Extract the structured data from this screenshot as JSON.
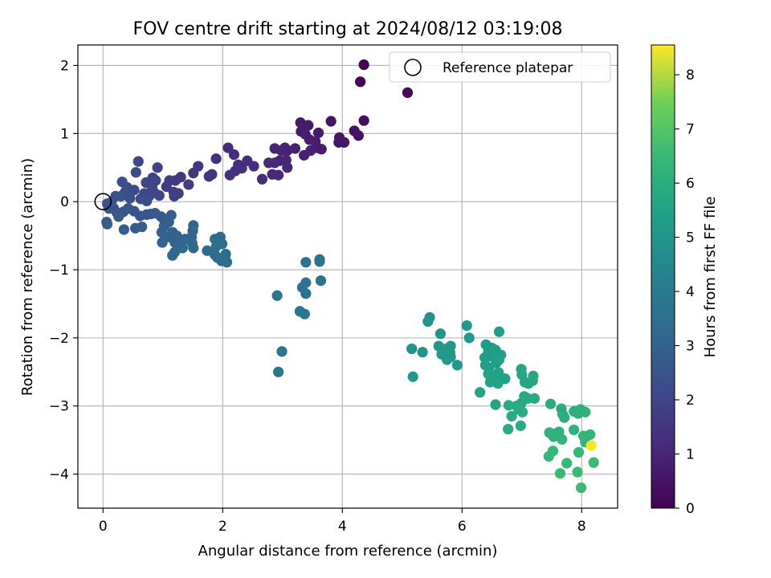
{
  "chart_data": {
    "type": "scatter",
    "title": "FOV centre drift starting at 2024/08/12 03:19:08",
    "xlabel": "Angular distance from reference (arcmin)",
    "ylabel": "Rotation from reference (arcmin)",
    "xlim": [
      -0.42,
      8.6
    ],
    "ylim": [
      -4.5,
      2.3
    ],
    "xticks": [
      0,
      2,
      4,
      6,
      8
    ],
    "yticks": [
      -4,
      -3,
      -2,
      -1,
      0,
      1,
      2
    ],
    "grid": true,
    "legend": {
      "position": "top-right",
      "entries": [
        "Reference platepar"
      ]
    },
    "reference_point": {
      "x": 0,
      "y": 0,
      "marker": "open-circle"
    },
    "colorbar": {
      "label": "Hours from first FF file",
      "colormap": "viridis",
      "range": [
        0,
        8.55
      ],
      "ticks": [
        0,
        1,
        2,
        3,
        4,
        5,
        6,
        7,
        8
      ]
    },
    "points": [
      [
        4.36,
        2.01,
        0.1
      ],
      [
        4.3,
        1.76,
        0.15
      ],
      [
        5.09,
        1.6,
        0.2
      ],
      [
        4.36,
        1.19,
        0.4
      ],
      [
        3.81,
        1.18,
        0.5
      ],
      [
        4.27,
        0.97,
        0.5
      ],
      [
        4.2,
        1.04,
        0.5
      ],
      [
        3.95,
        0.94,
        0.6
      ],
      [
        4.03,
        0.87,
        0.6
      ],
      [
        3.94,
        0.87,
        0.6
      ],
      [
        3.3,
        1.16,
        0.7
      ],
      [
        3.43,
        1.12,
        0.7
      ],
      [
        3.31,
        1.03,
        0.7
      ],
      [
        3.6,
        1.01,
        0.7
      ],
      [
        3.38,
        0.99,
        0.8
      ],
      [
        3.45,
        0.91,
        0.8
      ],
      [
        3.55,
        0.88,
        0.8
      ],
      [
        3.65,
        0.77,
        0.8
      ],
      [
        3.58,
        0.79,
        0.8
      ],
      [
        3.47,
        0.75,
        0.9
      ],
      [
        3.36,
        0.68,
        0.9
      ],
      [
        3.21,
        0.78,
        0.9
      ],
      [
        3.04,
        0.79,
        0.9
      ],
      [
        3.08,
        0.75,
        0.9
      ],
      [
        2.98,
        0.75,
        1.0
      ],
      [
        2.87,
        0.78,
        1.0
      ],
      [
        3.06,
        0.61,
        1.0
      ],
      [
        2.95,
        0.6,
        1.0
      ],
      [
        3.08,
        0.5,
        1.1
      ],
      [
        2.87,
        0.57,
        1.1
      ],
      [
        2.93,
        0.39,
        1.1
      ],
      [
        2.77,
        0.57,
        1.1
      ],
      [
        2.83,
        0.4,
        1.1
      ],
      [
        2.66,
        0.33,
        1.2
      ],
      [
        2.09,
        0.79,
        1.2
      ],
      [
        2.19,
        0.69,
        1.2
      ],
      [
        2.41,
        0.6,
        1.3
      ],
      [
        2.26,
        0.54,
        1.3
      ],
      [
        2.52,
        0.52,
        1.3
      ],
      [
        2.32,
        0.49,
        1.3
      ],
      [
        2.21,
        0.45,
        1.4
      ],
      [
        1.89,
        0.63,
        1.4
      ],
      [
        2.12,
        0.39,
        1.4
      ],
      [
        1.82,
        0.4,
        1.5
      ],
      [
        1.77,
        0.37,
        1.5
      ],
      [
        1.59,
        0.52,
        1.5
      ],
      [
        1.51,
        0.42,
        1.6
      ],
      [
        1.21,
        0.31,
        1.6
      ],
      [
        1.3,
        0.36,
        1.6
      ],
      [
        1.43,
        0.25,
        1.7
      ],
      [
        1.11,
        0.31,
        1.7
      ],
      [
        1.06,
        0.22,
        1.7
      ],
      [
        1.18,
        0.14,
        1.8
      ],
      [
        1.19,
        0.08,
        1.8
      ],
      [
        1.26,
        0.12,
        1.8
      ],
      [
        0.91,
        0.5,
        1.9
      ],
      [
        0.83,
        0.35,
        1.9
      ],
      [
        0.82,
        0.22,
        1.9
      ],
      [
        0.88,
        0.31,
        2.0
      ],
      [
        0.81,
        0.27,
        2.0
      ],
      [
        0.72,
        0.28,
        2.0
      ],
      [
        0.86,
        0.13,
        2.0
      ],
      [
        0.94,
        0.09,
        2.1
      ],
      [
        0.77,
        0.08,
        2.1
      ],
      [
        0.69,
        0.12,
        2.1
      ],
      [
        0.59,
        0.59,
        2.1
      ],
      [
        0.55,
        0.43,
        2.2
      ],
      [
        0.52,
        0.17,
        2.2
      ],
      [
        0.32,
        0.29,
        2.2
      ],
      [
        0.4,
        0.21,
        2.2
      ],
      [
        0.37,
        0.14,
        2.3
      ],
      [
        0.45,
        0.05,
        2.3
      ],
      [
        0.63,
        0.04,
        2.3
      ],
      [
        0.73,
        0.01,
        2.3
      ],
      [
        0.21,
        0.08,
        2.4
      ],
      [
        0.3,
        0.08,
        2.4
      ],
      [
        0.14,
        -0.01,
        2.4
      ],
      [
        0.07,
        -0.03,
        2.4
      ],
      [
        0.1,
        -0.1,
        2.5
      ],
      [
        0.18,
        -0.1,
        2.5
      ],
      [
        0.23,
        -0.16,
        2.5
      ],
      [
        0.34,
        -0.15,
        2.5
      ],
      [
        0.42,
        -0.1,
        2.6
      ],
      [
        0.52,
        -0.14,
        2.6
      ],
      [
        0.62,
        -0.21,
        2.6
      ],
      [
        0.73,
        -0.19,
        2.6
      ],
      [
        0.8,
        -0.18,
        2.7
      ],
      [
        0.87,
        -0.17,
        2.7
      ],
      [
        0.26,
        -0.22,
        2.7
      ],
      [
        0.06,
        -0.3,
        2.7
      ],
      [
        0.07,
        -0.33,
        2.7
      ],
      [
        0.35,
        -0.41,
        2.8
      ],
      [
        0.54,
        -0.39,
        2.8
      ],
      [
        0.65,
        -0.37,
        2.8
      ],
      [
        0.97,
        -0.22,
        2.8
      ],
      [
        1.02,
        -0.26,
        2.8
      ],
      [
        1.14,
        -0.2,
        2.9
      ],
      [
        1.1,
        -0.3,
        2.9
      ],
      [
        1.02,
        -0.36,
        2.9
      ],
      [
        0.98,
        -0.45,
        2.9
      ],
      [
        1.08,
        -0.52,
        3.0
      ],
      [
        0.99,
        -0.6,
        3.0
      ],
      [
        1.16,
        -0.45,
        3.0
      ],
      [
        1.23,
        -0.5,
        3.0
      ],
      [
        1.2,
        -0.6,
        3.0
      ],
      [
        1.28,
        -0.62,
        3.1
      ],
      [
        1.37,
        -0.55,
        3.1
      ],
      [
        1.48,
        -0.52,
        3.1
      ],
      [
        1.5,
        -0.43,
        3.1
      ],
      [
        1.51,
        -0.35,
        3.1
      ],
      [
        1.49,
        -0.61,
        3.2
      ],
      [
        1.51,
        -0.68,
        3.2
      ],
      [
        1.33,
        -0.68,
        3.2
      ],
      [
        1.2,
        -0.74,
        3.2
      ],
      [
        1.16,
        -0.79,
        3.2
      ],
      [
        1.74,
        -0.72,
        3.3
      ],
      [
        1.87,
        -0.55,
        3.3
      ],
      [
        1.96,
        -0.52,
        3.3
      ],
      [
        1.87,
        -0.78,
        3.3
      ],
      [
        1.91,
        -0.82,
        3.4
      ],
      [
        1.98,
        -0.87,
        3.4
      ],
      [
        2.04,
        -0.8,
        3.4
      ],
      [
        2.07,
        -0.89,
        3.4
      ],
      [
        2.05,
        -0.77,
        3.4
      ],
      [
        1.99,
        -0.62,
        3.5
      ],
      [
        1.89,
        -0.66,
        3.5
      ],
      [
        3.39,
        -0.89,
        3.6
      ],
      [
        3.62,
        -0.85,
        3.6
      ],
      [
        3.62,
        -0.88,
        3.6
      ],
      [
        3.64,
        -1.16,
        3.6
      ],
      [
        3.39,
        -1.19,
        3.7
      ],
      [
        3.33,
        -1.26,
        3.7
      ],
      [
        3.39,
        -1.35,
        3.7
      ],
      [
        2.91,
        -1.38,
        3.7
      ],
      [
        3.29,
        -1.61,
        3.8
      ],
      [
        3.37,
        -1.65,
        3.8
      ],
      [
        2.99,
        -2.2,
        3.8
      ],
      [
        2.93,
        -2.5,
        3.8
      ],
      [
        5.46,
        -1.7,
        4.9
      ],
      [
        5.43,
        -1.76,
        4.9
      ],
      [
        5.64,
        -1.94,
        5.0
      ],
      [
        5.61,
        -2.12,
        5.0
      ],
      [
        5.16,
        -2.16,
        5.0
      ],
      [
        5.34,
        -2.21,
        5.0
      ],
      [
        5.81,
        -2.12,
        5.1
      ],
      [
        5.74,
        -2.16,
        5.1
      ],
      [
        5.66,
        -2.24,
        5.1
      ],
      [
        5.8,
        -2.22,
        5.1
      ],
      [
        5.75,
        -2.32,
        5.1
      ],
      [
        5.81,
        -2.28,
        5.1
      ],
      [
        5.92,
        -2.4,
        5.2
      ],
      [
        6.08,
        -1.82,
        5.2
      ],
      [
        6.12,
        -2.0,
        5.2
      ],
      [
        5.18,
        -2.57,
        5.2
      ],
      [
        6.4,
        -2.1,
        5.3
      ],
      [
        6.44,
        -2.2,
        5.3
      ],
      [
        6.5,
        -2.15,
        5.3
      ],
      [
        6.49,
        -2.27,
        5.3
      ],
      [
        6.38,
        -2.29,
        5.3
      ],
      [
        6.39,
        -2.4,
        5.4
      ],
      [
        6.45,
        -2.44,
        5.4
      ],
      [
        6.57,
        -2.37,
        5.4
      ],
      [
        6.62,
        -1.91,
        5.4
      ],
      [
        6.56,
        -2.18,
        5.4
      ],
      [
        6.65,
        -2.25,
        5.4
      ],
      [
        6.62,
        -2.32,
        5.5
      ],
      [
        6.44,
        -2.53,
        5.5
      ],
      [
        6.51,
        -2.57,
        5.5
      ],
      [
        6.61,
        -2.51,
        5.5
      ],
      [
        6.72,
        -2.6,
        5.5
      ],
      [
        6.56,
        -2.62,
        5.5
      ],
      [
        6.6,
        -2.67,
        5.6
      ],
      [
        6.47,
        -2.65,
        5.6
      ],
      [
        6.3,
        -2.8,
        5.6
      ],
      [
        6.56,
        -2.98,
        5.6
      ],
      [
        6.99,
        -2.46,
        5.7
      ],
      [
        7.0,
        -2.54,
        5.7
      ],
      [
        7.05,
        -2.65,
        5.7
      ],
      [
        7.19,
        -2.56,
        5.7
      ],
      [
        7.18,
        -2.63,
        5.7
      ],
      [
        7.11,
        -2.67,
        5.7
      ],
      [
        7.04,
        -2.86,
        5.8
      ],
      [
        7.1,
        -2.89,
        5.8
      ],
      [
        7.21,
        -2.89,
        5.8
      ],
      [
        6.99,
        -2.96,
        5.8
      ],
      [
        6.91,
        -3.0,
        5.8
      ],
      [
        6.78,
        -2.99,
        5.9
      ],
      [
        6.95,
        -3.05,
        5.9
      ],
      [
        7.01,
        -3.09,
        5.9
      ],
      [
        6.83,
        -3.15,
        5.9
      ],
      [
        6.98,
        -3.29,
        5.9
      ],
      [
        6.77,
        -3.34,
        5.9
      ],
      [
        7.48,
        -2.97,
        6.0
      ],
      [
        7.66,
        -3.04,
        6.0
      ],
      [
        7.68,
        -3.12,
        6.0
      ],
      [
        7.71,
        -3.17,
        6.0
      ],
      [
        7.87,
        -3.08,
        6.1
      ],
      [
        7.98,
        -3.05,
        6.1
      ],
      [
        7.94,
        -3.11,
        6.1
      ],
      [
        8.06,
        -3.09,
        6.1
      ],
      [
        7.87,
        -3.35,
        6.1
      ],
      [
        7.62,
        -3.38,
        6.2
      ],
      [
        7.54,
        -3.41,
        6.2
      ],
      [
        7.46,
        -3.39,
        6.2
      ],
      [
        7.6,
        -3.44,
        6.2
      ],
      [
        7.53,
        -3.45,
        6.2
      ],
      [
        8.03,
        -3.44,
        6.3
      ],
      [
        8.06,
        -3.53,
        6.3
      ],
      [
        8.14,
        -3.42,
        6.3
      ],
      [
        7.67,
        -3.49,
        6.3
      ],
      [
        7.52,
        -3.66,
        6.4
      ],
      [
        7.45,
        -3.74,
        6.4
      ],
      [
        7.95,
        -3.68,
        6.4
      ],
      [
        7.75,
        -3.84,
        6.4
      ],
      [
        8.2,
        -3.83,
        6.5
      ],
      [
        7.64,
        -3.99,
        6.5
      ],
      [
        7.93,
        -3.97,
        6.5
      ],
      [
        7.99,
        -4.2,
        6.5
      ],
      [
        8.16,
        -3.58,
        8.5
      ]
    ]
  }
}
